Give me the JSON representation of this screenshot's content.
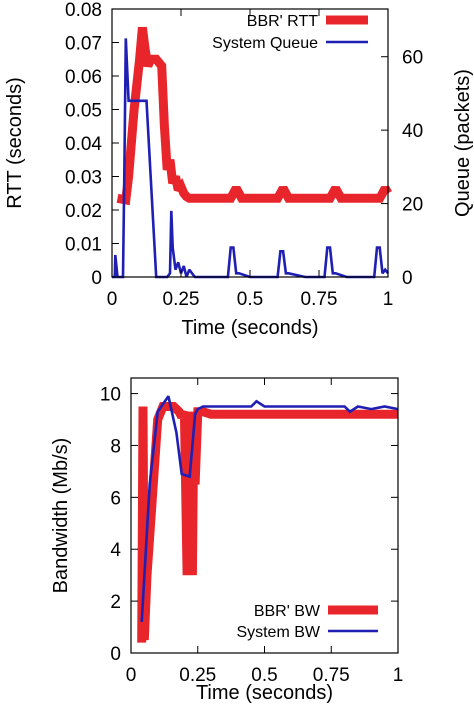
{
  "colors": {
    "bbr": "#e8252b",
    "system": "#1f1fb4",
    "axis": "#000000",
    "background": "#ffffff"
  },
  "chart_data": [
    {
      "type": "line",
      "id": "rtt",
      "xlabel": "Time (seconds)",
      "ylabel": "RTT (seconds)",
      "y2label": "Queue (packets)",
      "xlim": [
        0,
        1
      ],
      "ylim": [
        0,
        0.08
      ],
      "y2lim": [
        0,
        73
      ],
      "xticks": [
        0,
        0.25,
        0.5,
        0.75,
        1
      ],
      "xtick_labels": [
        "0",
        "0.25",
        "0.5",
        "0.75",
        "1"
      ],
      "yticks": [
        0,
        0.01,
        0.02,
        0.03,
        0.04,
        0.05,
        0.06,
        0.07,
        0.08
      ],
      "ytick_labels": [
        "0",
        "0.01",
        "0.02",
        "0.03",
        "0.04",
        "0.05",
        "0.06",
        "0.07",
        "0.08"
      ],
      "y2ticks": [
        0,
        20,
        40,
        60
      ],
      "y2tick_labels": [
        "0",
        "20",
        "40",
        "60"
      ],
      "legend_position": "top-right",
      "grid": false,
      "series": [
        {
          "name": "BBR' RTT",
          "axis": "y",
          "x": [
            0.02,
            0.05,
            0.06,
            0.08,
            0.1,
            0.11,
            0.12,
            0.13,
            0.14,
            0.16,
            0.18,
            0.19,
            0.2,
            0.21,
            0.22,
            0.23,
            0.24,
            0.25,
            0.26,
            0.27,
            0.28,
            0.3,
            0.35,
            0.4,
            0.43,
            0.44,
            0.45,
            0.46,
            0.47,
            0.5,
            0.55,
            0.6,
            0.61,
            0.62,
            0.63,
            0.64,
            0.65,
            0.7,
            0.75,
            0.79,
            0.8,
            0.81,
            0.82,
            0.83,
            0.85,
            0.9,
            0.95,
            0.97,
            0.98,
            0.99,
            1.0
          ],
          "y": [
            0.0235,
            0.023,
            0.03,
            0.05,
            0.065,
            0.0745,
            0.068,
            0.063,
            0.065,
            0.065,
            0.063,
            0.045,
            0.032,
            0.035,
            0.028,
            0.03,
            0.026,
            0.027,
            0.025,
            0.024,
            0.0235,
            0.0235,
            0.0235,
            0.0235,
            0.0235,
            0.025,
            0.0265,
            0.025,
            0.0235,
            0.0235,
            0.0235,
            0.0235,
            0.025,
            0.0265,
            0.025,
            0.0235,
            0.0235,
            0.0235,
            0.0235,
            0.0235,
            0.025,
            0.0265,
            0.025,
            0.0235,
            0.0235,
            0.0235,
            0.0235,
            0.0235,
            0.025,
            0.0265,
            0.025
          ]
        },
        {
          "name": "System Queue",
          "axis": "y2",
          "x": [
            0.0,
            0.01,
            0.012,
            0.02,
            0.04,
            0.045,
            0.05,
            0.06,
            0.065,
            0.07,
            0.12,
            0.125,
            0.16,
            0.2,
            0.21,
            0.215,
            0.22,
            0.23,
            0.24,
            0.25,
            0.26,
            0.27,
            0.28,
            0.3,
            0.42,
            0.43,
            0.44,
            0.45,
            0.46,
            0.5,
            0.6,
            0.61,
            0.62,
            0.63,
            0.64,
            0.7,
            0.77,
            0.78,
            0.79,
            0.8,
            0.81,
            0.85,
            0.95,
            0.96,
            0.97,
            0.98,
            0.99,
            1.0
          ],
          "y": [
            0,
            0,
            6,
            0,
            0,
            30,
            65,
            48,
            48,
            48,
            48,
            48,
            0,
            0,
            1,
            18,
            8,
            2,
            4,
            1,
            3,
            0,
            2,
            0,
            0,
            8,
            8,
            1,
            1,
            0,
            0,
            7,
            7,
            1,
            1,
            0,
            0,
            8,
            8,
            1,
            1,
            0,
            0,
            8,
            8,
            1,
            2,
            1
          ]
        }
      ]
    },
    {
      "type": "line",
      "id": "bw",
      "xlabel": "Time (seconds)",
      "ylabel": "Bandwidth (Mb/s)",
      "xlim": [
        0,
        1
      ],
      "ylim": [
        0,
        10.6
      ],
      "xticks": [
        0,
        0.25,
        0.5,
        0.75,
        1
      ],
      "xtick_labels": [
        "0",
        "0.25",
        "0.5",
        "0.75",
        "1"
      ],
      "yticks": [
        0,
        2,
        4,
        6,
        8,
        10
      ],
      "ytick_labels": [
        "0",
        "2",
        "4",
        "6",
        "8",
        "10"
      ],
      "legend_position": "bottom-right",
      "grid": false,
      "series": [
        {
          "name": "BBR' BW",
          "axis": "y",
          "x": [
            0.04,
            0.045,
            0.05,
            0.06,
            0.08,
            0.1,
            0.12,
            0.14,
            0.16,
            0.18,
            0.19,
            0.2,
            0.21,
            0.22,
            0.23,
            0.235,
            0.24,
            0.25,
            0.27,
            0.3,
            0.4,
            0.45,
            0.47,
            0.5,
            0.6,
            0.62,
            0.65,
            0.7,
            0.75,
            0.8,
            0.82,
            0.85,
            0.9,
            0.95,
            1.0
          ],
          "y": [
            0.4,
            9.5,
            0.5,
            3.0,
            6.0,
            9.0,
            9.5,
            9.5,
            9.5,
            9.3,
            9.1,
            9.3,
            3.0,
            9.3,
            3.0,
            8.5,
            6.5,
            9.3,
            9.3,
            9.2,
            9.2,
            9.2,
            9.2,
            9.2,
            9.2,
            9.2,
            9.2,
            9.2,
            9.2,
            9.2,
            9.2,
            9.2,
            9.2,
            9.2,
            9.2
          ]
        },
        {
          "name": "System BW",
          "axis": "y",
          "x": [
            0.04,
            0.07,
            0.1,
            0.14,
            0.17,
            0.19,
            0.22,
            0.24,
            0.25,
            0.27,
            0.3,
            0.35,
            0.4,
            0.45,
            0.47,
            0.5,
            0.55,
            0.6,
            0.65,
            0.7,
            0.8,
            0.82,
            0.85,
            0.9,
            0.95,
            1.0
          ],
          "y": [
            1.2,
            6.5,
            9.3,
            9.9,
            8.5,
            6.9,
            6.8,
            9.2,
            9.4,
            9.5,
            9.5,
            9.5,
            9.5,
            9.5,
            9.7,
            9.5,
            9.5,
            9.5,
            9.5,
            9.5,
            9.5,
            9.3,
            9.5,
            9.4,
            9.5,
            9.4
          ]
        }
      ]
    }
  ]
}
